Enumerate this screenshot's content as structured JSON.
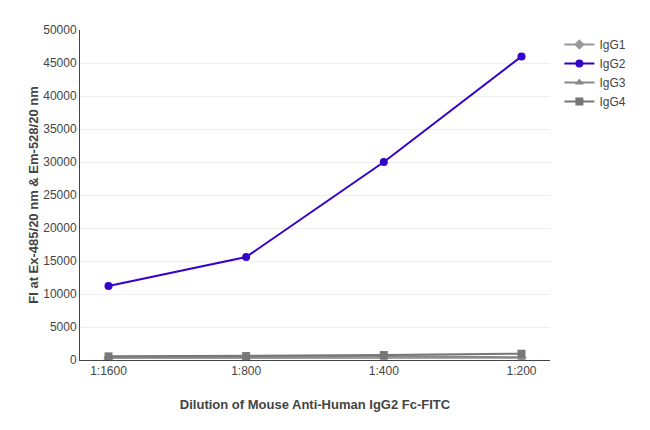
{
  "chart_data": {
    "type": "line",
    "xlabel": "Dilution of Mouse Anti-Human IgG2 Fc-FITC",
    "ylabel": "FI at Ex-485/20 nm & Em-528/20 nm",
    "categories": [
      "1:1600",
      "1:800",
      "1:400",
      "1:200"
    ],
    "series": [
      {
        "name": "IgG1",
        "color": "#999999",
        "marker": "diamond",
        "values": [
          300,
          300,
          300,
          350
        ]
      },
      {
        "name": "IgG2",
        "color": "#3300cc",
        "marker": "circle",
        "values": [
          11200,
          15600,
          30000,
          46000
        ]
      },
      {
        "name": "IgG3",
        "color": "#888888",
        "marker": "triangle-up",
        "values": [
          400,
          450,
          600,
          400
        ]
      },
      {
        "name": "IgG4",
        "color": "#777777",
        "marker": "square",
        "values": [
          550,
          600,
          750,
          950
        ]
      }
    ],
    "ylim": [
      0,
      50000
    ],
    "yticks": [
      0,
      5000,
      10000,
      15000,
      20000,
      25000,
      30000,
      35000,
      40000,
      45000,
      50000
    ],
    "grid": true,
    "legend": "upper right"
  }
}
